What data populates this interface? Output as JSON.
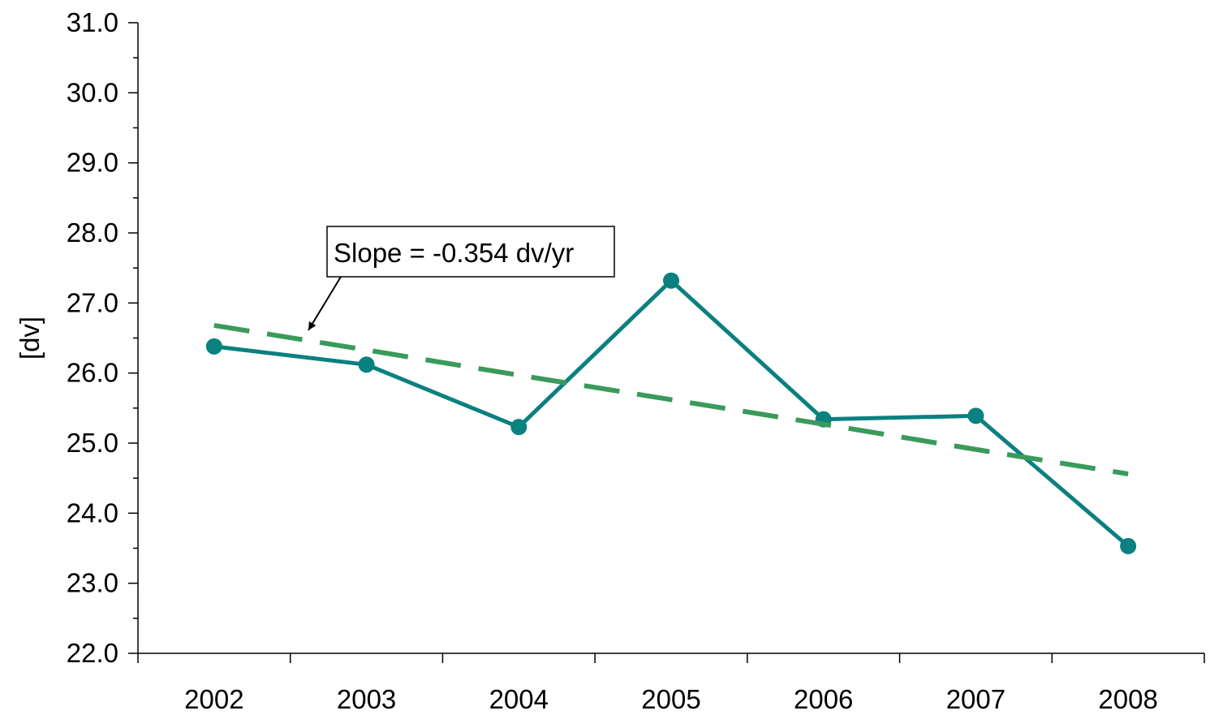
{
  "chart_data": {
    "type": "line",
    "title": "",
    "xlabel": "",
    "ylabel": "[dv]",
    "categories": [
      "2002",
      "2003",
      "2004",
      "2005",
      "2006",
      "2007",
      "2008"
    ],
    "ylim": [
      22.0,
      31.0
    ],
    "y_ticks": [
      "22.0",
      "23.0",
      "24.0",
      "25.0",
      "26.0",
      "27.0",
      "28.0",
      "29.0",
      "30.0",
      "31.0"
    ],
    "grid": false,
    "legend": "none",
    "series": [
      {
        "values": [
          26.38,
          26.12,
          25.23,
          27.32,
          25.34,
          25.39,
          23.53
        ],
        "color": "#0b8080",
        "style": "solid",
        "markers": "circle"
      },
      {
        "values": [
          26.68,
          26.33,
          25.97,
          25.62,
          25.27,
          24.91,
          24.56
        ],
        "color": "#3a9a5c",
        "style": "dashed",
        "markers": "none"
      }
    ],
    "annotation": {
      "text": "Slope = -0.354 dv/yr",
      "points_to": "trend line near 2002.6"
    }
  }
}
